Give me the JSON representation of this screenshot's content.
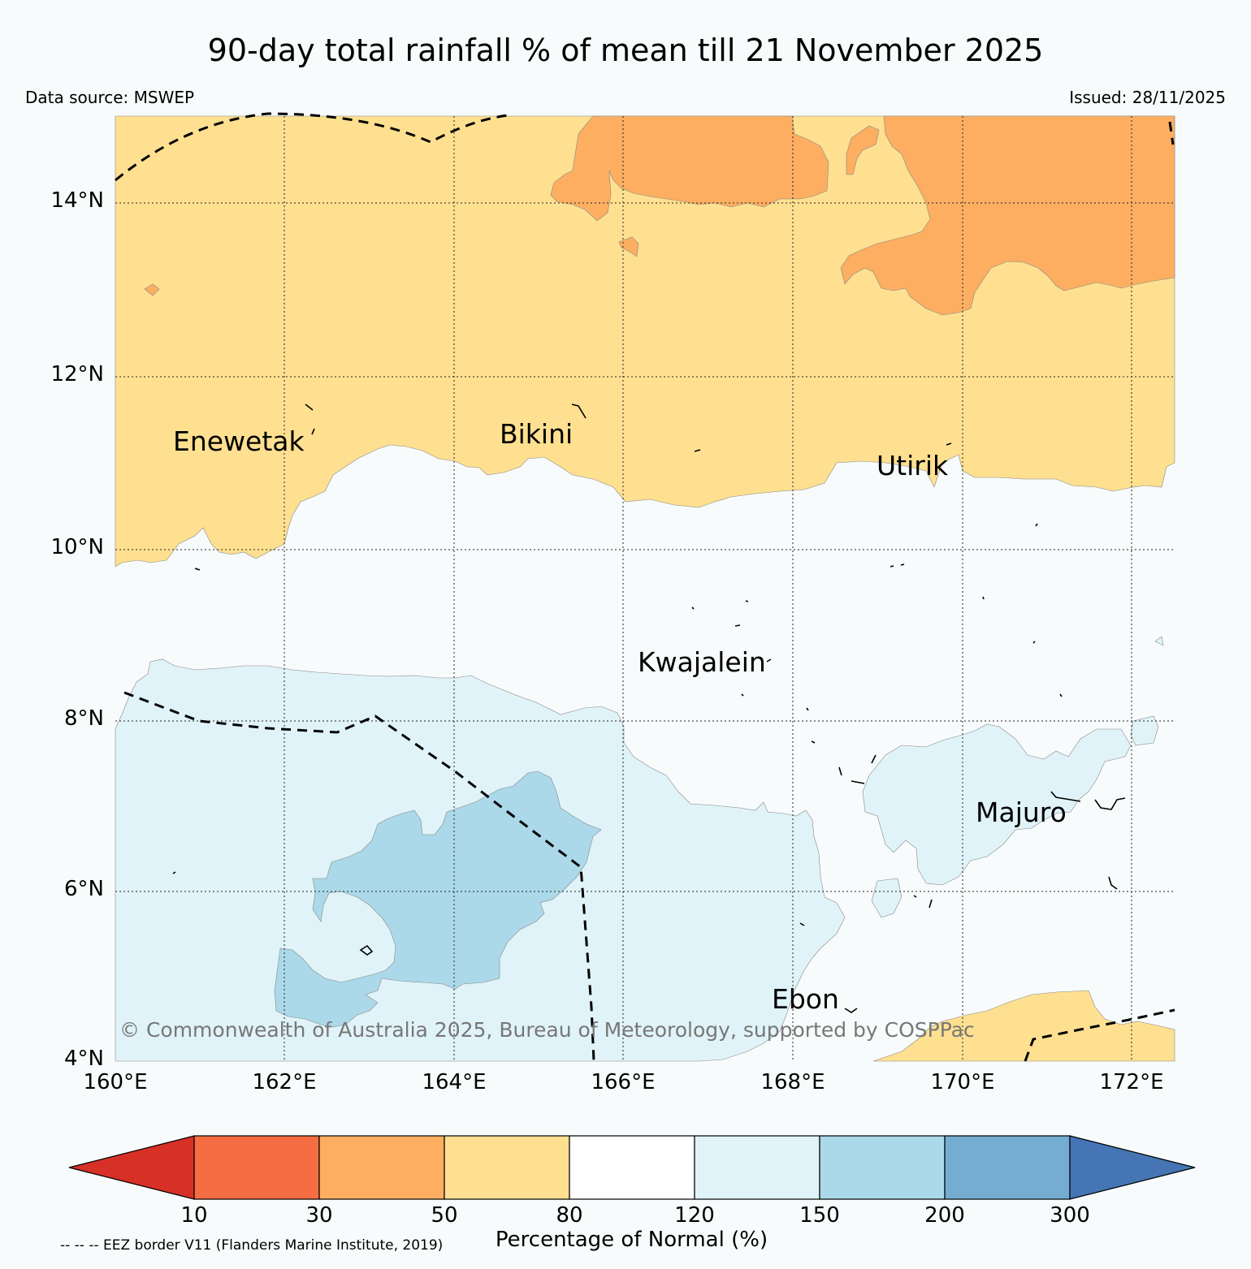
{
  "title": "90-day total rainfall % of mean till 21 November 2025",
  "data_source": "Data source: MSWEP",
  "issued": "Issued: 28/11/2025",
  "copyright": "© Commonwealth of Australia 2025, Bureau of Meteorology, supported by COSPPac",
  "lat_labels": [
    "14°N",
    "12°N",
    "10°N",
    "8°N",
    "6°N",
    "4°N"
  ],
  "lon_labels": [
    "160°E",
    "162°E",
    "164°E",
    "166°E",
    "168°E",
    "170°E",
    "172°E"
  ],
  "places": {
    "enewetak": "Enewetak",
    "bikini": "Bikini",
    "utirik": "Utirik",
    "kwajalein": "Kwajalein",
    "majuro": "Majuro",
    "ebon": "Ebon"
  },
  "colorbar": {
    "ticks": [
      "10",
      "30",
      "50",
      "80",
      "120",
      "150",
      "200",
      "300"
    ],
    "colors": {
      "below_10": "#d73027",
      "c10_30": "#f46d43",
      "c30_50": "#fdae61",
      "c50_80": "#fee090",
      "c80_120": "#ffffff",
      "c120_150": "#e0f3f8",
      "c150_200": "#abd9e9",
      "c200_300": "#74add1",
      "above_300": "#4575b4"
    },
    "label": "Percentage of Normal (%)"
  },
  "legend_note": "-- -- -- EEZ border V11 (Flanders Marine Institute, 2019)"
}
